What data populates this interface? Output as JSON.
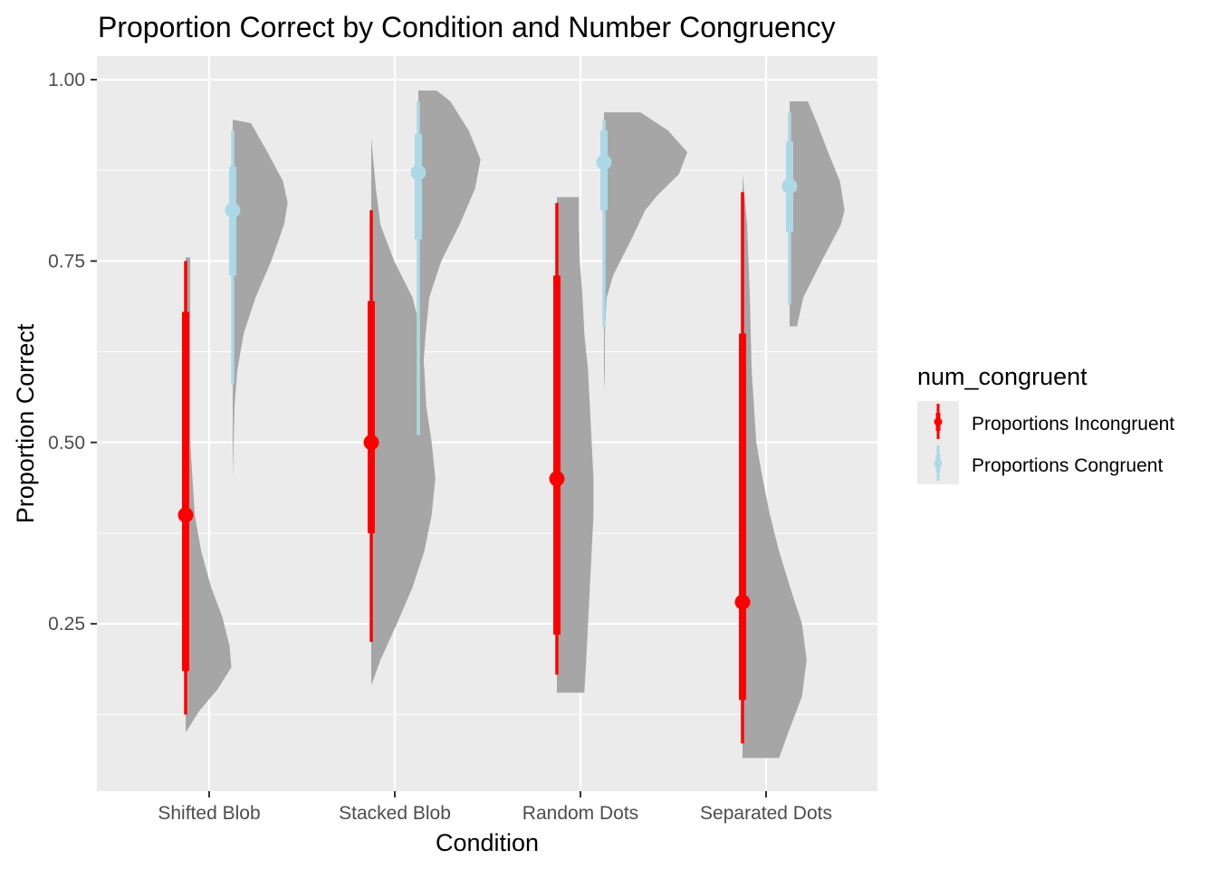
{
  "chart_data": {
    "type": "raincloud",
    "title": "Proportion Correct by Condition and Number Congruency",
    "xlabel": "Condition",
    "ylabel": "Proportion Correct",
    "ylim": [
      0.0,
      1.03
    ],
    "y_ticks": [
      0.25,
      0.5,
      0.75,
      1.0
    ],
    "y_tick_labels": [
      "0.25",
      "0.50",
      "0.75",
      "1.00"
    ],
    "grid": true,
    "categories": [
      "Shifted Blob",
      "Stacked Blob",
      "Random Dots",
      "Separated Dots"
    ],
    "legend": {
      "title": "num_congruent",
      "placement": "right",
      "items": [
        "Proportions Incongruent",
        "Proportions Congruent"
      ]
    },
    "colors": {
      "panel": "#ebebeb",
      "grid": "#ffffff",
      "density": "#a6a6a6",
      "incongruent": "#ff0000",
      "congruent": "#add8e6"
    },
    "series": [
      {
        "name": "Proportions Incongruent",
        "color": "#ff0000",
        "intervals": [
          {
            "category": "Shifted Blob",
            "median": 0.4,
            "inner": [
              0.185,
              0.68
            ],
            "outer": [
              0.125,
              0.75
            ]
          },
          {
            "category": "Stacked Blob",
            "median": 0.5,
            "inner": [
              0.375,
              0.695
            ],
            "outer": [
              0.225,
              0.82
            ]
          },
          {
            "category": "Random Dots",
            "median": 0.45,
            "inner": [
              0.235,
              0.73
            ],
            "outer": [
              0.18,
              0.83
            ]
          },
          {
            "category": "Separated Dots",
            "median": 0.28,
            "inner": [
              0.145,
              0.65
            ],
            "outer": [
              0.085,
              0.845
            ]
          }
        ],
        "densities": [
          {
            "category": "Shifted Blob",
            "points": [
              [
                0.1,
                0.0
              ],
              [
                0.13,
                0.15
              ],
              [
                0.16,
                0.35
              ],
              [
                0.19,
                0.5
              ],
              [
                0.22,
                0.48
              ],
              [
                0.26,
                0.4
              ],
              [
                0.3,
                0.28
              ],
              [
                0.35,
                0.17
              ],
              [
                0.4,
                0.1
              ],
              [
                0.5,
                0.05
              ],
              [
                0.6,
                0.05
              ],
              [
                0.7,
                0.05
              ],
              [
                0.755,
                0.05
              ],
              [
                0.755,
                0.0
              ]
            ]
          },
          {
            "category": "Stacked Blob",
            "points": [
              [
                0.165,
                0.0
              ],
              [
                0.2,
                0.1
              ],
              [
                0.25,
                0.28
              ],
              [
                0.3,
                0.45
              ],
              [
                0.35,
                0.58
              ],
              [
                0.4,
                0.66
              ],
              [
                0.45,
                0.7
              ],
              [
                0.5,
                0.66
              ],
              [
                0.55,
                0.6
              ],
              [
                0.6,
                0.58
              ],
              [
                0.65,
                0.55
              ],
              [
                0.7,
                0.45
              ],
              [
                0.75,
                0.25
              ],
              [
                0.8,
                0.1
              ],
              [
                0.85,
                0.05
              ],
              [
                0.92,
                0.0
              ]
            ]
          },
          {
            "category": "Random Dots",
            "points": [
              [
                0.155,
                0.0
              ],
              [
                0.155,
                0.3
              ],
              [
                0.2,
                0.32
              ],
              [
                0.25,
                0.34
              ],
              [
                0.3,
                0.36
              ],
              [
                0.35,
                0.38
              ],
              [
                0.4,
                0.4
              ],
              [
                0.45,
                0.4
              ],
              [
                0.5,
                0.38
              ],
              [
                0.55,
                0.36
              ],
              [
                0.6,
                0.34
              ],
              [
                0.65,
                0.3
              ],
              [
                0.7,
                0.28
              ],
              [
                0.75,
                0.25
              ],
              [
                0.8,
                0.24
              ],
              [
                0.838,
                0.24
              ],
              [
                0.838,
                0.0
              ]
            ]
          },
          {
            "category": "Separated Dots",
            "points": [
              [
                0.065,
                0.0
              ],
              [
                0.065,
                0.4
              ],
              [
                0.1,
                0.5
              ],
              [
                0.15,
                0.65
              ],
              [
                0.2,
                0.7
              ],
              [
                0.25,
                0.65
              ],
              [
                0.3,
                0.52
              ],
              [
                0.35,
                0.4
              ],
              [
                0.4,
                0.3
              ],
              [
                0.45,
                0.22
              ],
              [
                0.5,
                0.15
              ],
              [
                0.6,
                0.1
              ],
              [
                0.7,
                0.08
              ],
              [
                0.8,
                0.05
              ],
              [
                0.87,
                0.0
              ]
            ]
          }
        ]
      },
      {
        "name": "Proportions Congruent",
        "color": "#add8e6",
        "intervals": [
          {
            "category": "Shifted Blob",
            "median": 0.82,
            "inner": [
              0.73,
              0.88
            ],
            "outer": [
              0.58,
              0.93
            ]
          },
          {
            "category": "Stacked Blob",
            "median": 0.872,
            "inner": [
              0.78,
              0.925
            ],
            "outer": [
              0.51,
              0.97
            ]
          },
          {
            "category": "Random Dots",
            "median": 0.886,
            "inner": [
              0.82,
              0.93
            ],
            "outer": [
              0.66,
              0.945
            ]
          },
          {
            "category": "Separated Dots",
            "median": 0.853,
            "inner": [
              0.79,
              0.915
            ],
            "outer": [
              0.69,
              0.955
            ]
          }
        ],
        "densities": [
          {
            "category": "Shifted Blob",
            "points": [
              [
                0.45,
                0.0
              ],
              [
                0.5,
                0.01
              ],
              [
                0.55,
                0.02
              ],
              [
                0.6,
                0.05
              ],
              [
                0.65,
                0.12
              ],
              [
                0.7,
                0.25
              ],
              [
                0.75,
                0.42
              ],
              [
                0.8,
                0.56
              ],
              [
                0.83,
                0.6
              ],
              [
                0.86,
                0.55
              ],
              [
                0.9,
                0.38
              ],
              [
                0.94,
                0.2
              ],
              [
                0.945,
                0.0
              ]
            ]
          },
          {
            "category": "Stacked Blob",
            "points": [
              [
                0.45,
                0.0
              ],
              [
                0.5,
                0.01
              ],
              [
                0.55,
                0.02
              ],
              [
                0.6,
                0.05
              ],
              [
                0.65,
                0.08
              ],
              [
                0.7,
                0.12
              ],
              [
                0.75,
                0.25
              ],
              [
                0.8,
                0.45
              ],
              [
                0.85,
                0.62
              ],
              [
                0.89,
                0.68
              ],
              [
                0.93,
                0.55
              ],
              [
                0.97,
                0.35
              ],
              [
                0.985,
                0.2
              ],
              [
                0.985,
                0.0
              ]
            ]
          },
          {
            "category": "Random Dots",
            "points": [
              [
                0.57,
                0.0
              ],
              [
                0.6,
                0.01
              ],
              [
                0.65,
                0.01
              ],
              [
                0.7,
                0.03
              ],
              [
                0.73,
                0.1
              ],
              [
                0.78,
                0.3
              ],
              [
                0.82,
                0.45
              ],
              [
                0.84,
                0.58
              ],
              [
                0.87,
                0.82
              ],
              [
                0.9,
                0.91
              ],
              [
                0.93,
                0.7
              ],
              [
                0.955,
                0.4
              ],
              [
                0.955,
                0.0
              ]
            ]
          },
          {
            "category": "Separated Dots",
            "points": [
              [
                0.66,
                0.0
              ],
              [
                0.66,
                0.08
              ],
              [
                0.7,
                0.15
              ],
              [
                0.75,
                0.35
              ],
              [
                0.8,
                0.56
              ],
              [
                0.82,
                0.6
              ],
              [
                0.86,
                0.55
              ],
              [
                0.9,
                0.42
              ],
              [
                0.94,
                0.3
              ],
              [
                0.97,
                0.2
              ],
              [
                0.97,
                0.0
              ]
            ]
          }
        ]
      }
    ]
  }
}
